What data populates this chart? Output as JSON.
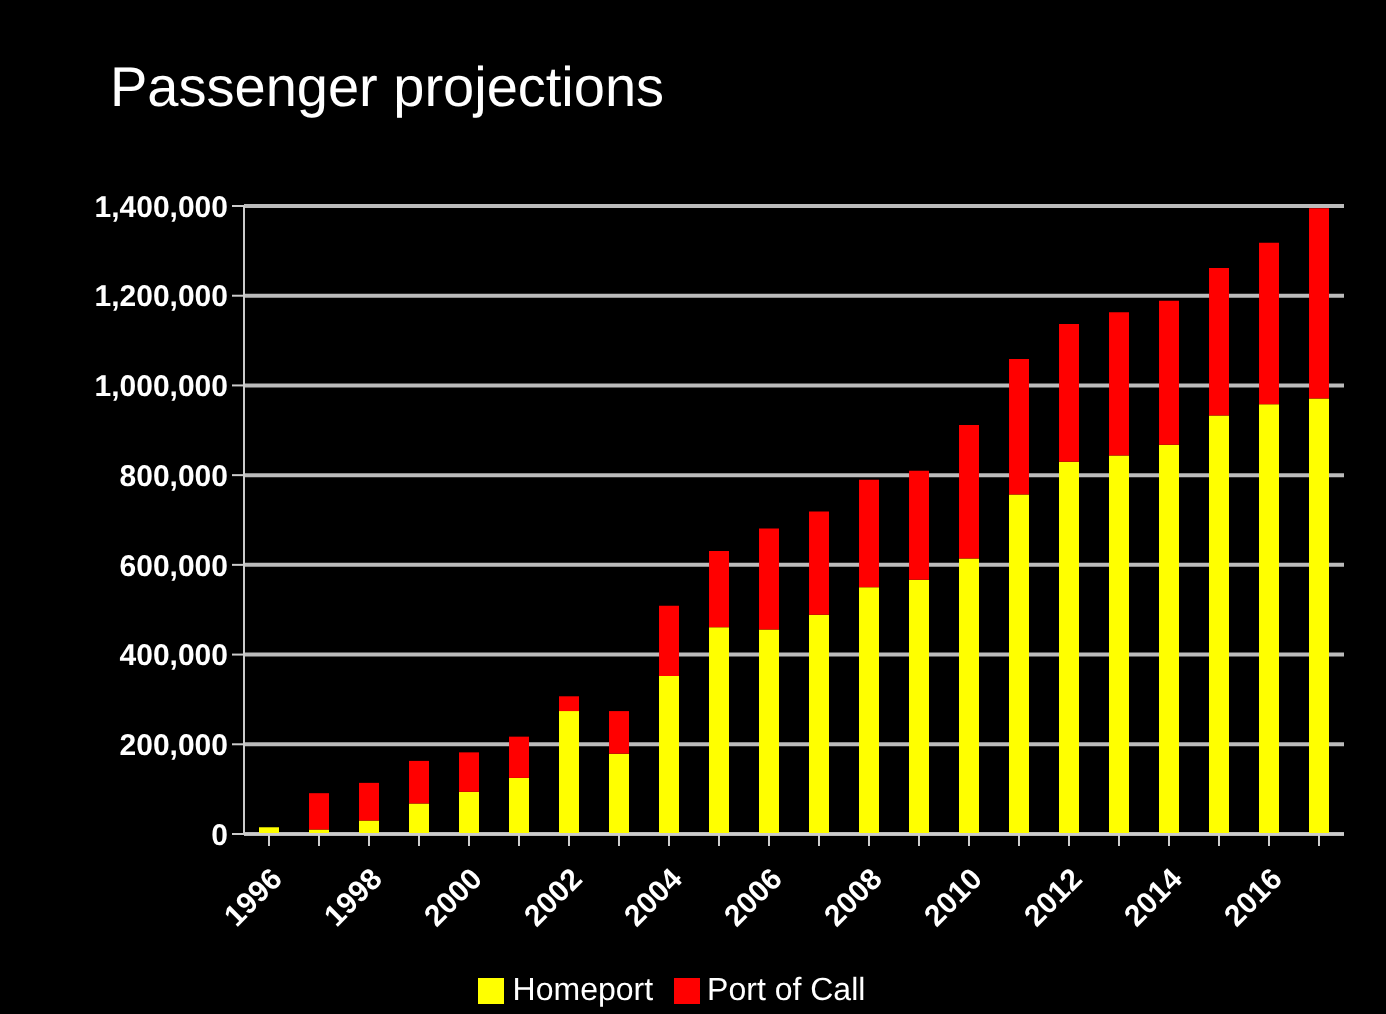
{
  "chart_data": {
    "type": "bar",
    "title": "Passenger projections",
    "stacked": true,
    "categories": [
      "1996",
      null,
      "1998",
      null,
      "2000",
      null,
      "2002",
      null,
      "2004",
      null,
      "2006",
      null,
      "2008",
      null,
      "2010",
      null,
      "2012",
      null,
      "2014",
      null,
      "2016",
      null
    ],
    "series": [
      {
        "name": "Homeport",
        "color": "#ffff00",
        "values": [
          15000,
          10000,
          30000,
          68000,
          94000,
          125000,
          274000,
          179000,
          352000,
          461000,
          456000,
          489000,
          550000,
          567000,
          614000,
          757000,
          830000,
          844000,
          868000,
          933000,
          958000,
          971000
        ]
      },
      {
        "name": "Port of Call",
        "color": "#ff0000",
        "values": [
          0,
          81000,
          84000,
          95000,
          88000,
          92000,
          33000,
          95000,
          157000,
          170000,
          225000,
          230000,
          240000,
          243000,
          298000,
          302000,
          307000,
          319000,
          321000,
          329000,
          360000,
          424000
        ]
      }
    ],
    "ylim": [
      0,
      1400000
    ],
    "yticks": [
      {
        "value": 0,
        "label": "0"
      },
      {
        "value": 200000,
        "label": "200,000"
      },
      {
        "value": 400000,
        "label": "400,000"
      },
      {
        "value": 600000,
        "label": "600,000"
      },
      {
        "value": 800000,
        "label": "800,000"
      },
      {
        "value": 1000000,
        "label": "1,000,000"
      },
      {
        "value": 1200000,
        "label": "1,200,000"
      },
      {
        "value": 1400000,
        "label": "1,400,000"
      }
    ],
    "grid": "y",
    "legend": "bottom"
  }
}
